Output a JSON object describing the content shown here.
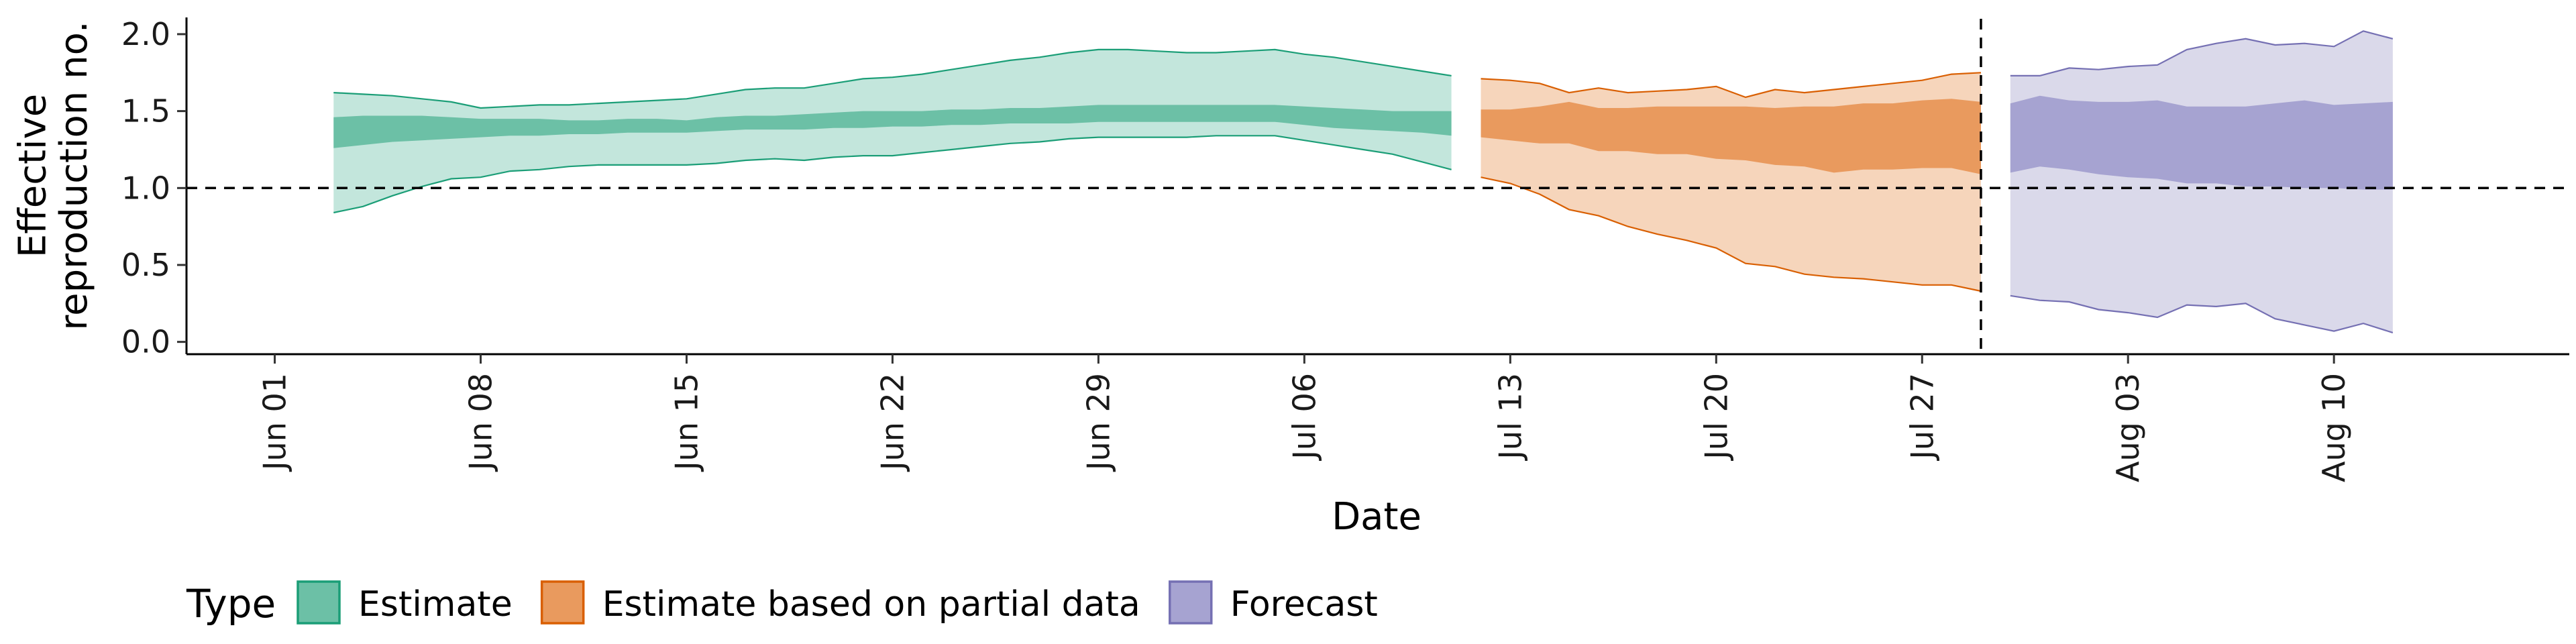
{
  "chart_data": {
    "type": "area",
    "title": "",
    "xlabel": "Date",
    "ylabel": "Effective\nreproduction no.",
    "x_tick_labels": [
      "Jun 01",
      "Jun 08",
      "Jun 15",
      "Jun 22",
      "Jun 29",
      "Jul 06",
      "Jul 13",
      "Jul 20",
      "Jul 27",
      "Aug 03",
      "Aug 10"
    ],
    "x_tick_dates": [
      "2020-06-01",
      "2020-06-08",
      "2020-06-15",
      "2020-06-22",
      "2020-06-29",
      "2020-07-06",
      "2020-07-13",
      "2020-07-20",
      "2020-07-27",
      "2020-08-03",
      "2020-08-10"
    ],
    "x_range": [
      "2020-05-29",
      "2020-08-18"
    ],
    "y_ticks": [
      "0.0",
      "0.5",
      "1.0",
      "1.5",
      "2.0"
    ],
    "ylim": [
      -0.08,
      2.1
    ],
    "reference_lines": {
      "horizontal_y": 1.0,
      "vertical_date": "2020-07-29"
    },
    "grid": false,
    "legend": {
      "title": "Type",
      "position": "bottom",
      "entries": [
        {
          "label": "Estimate",
          "fill": "#6cc0a6",
          "stroke": "#1b9e77"
        },
        {
          "label": "Estimate based on partial data",
          "fill": "#e99a5e",
          "stroke": "#d95f02"
        },
        {
          "label": "Forecast",
          "fill": "#a6a3d1",
          "stroke": "#7570b3"
        }
      ]
    },
    "series": [
      {
        "name": "Estimate",
        "outer_color": "#c3e6dc",
        "inner_color": "#6cc0a6",
        "stroke": "#1b9e77",
        "points": [
          {
            "date": "2020-06-03",
            "lower90": 0.84,
            "lower50": 1.26,
            "upper50": 1.46,
            "upper90": 1.62
          },
          {
            "date": "2020-06-04",
            "lower90": 0.88,
            "lower50": 1.28,
            "upper50": 1.47,
            "upper90": 1.61
          },
          {
            "date": "2020-06-05",
            "lower90": 0.95,
            "lower50": 1.3,
            "upper50": 1.47,
            "upper90": 1.6
          },
          {
            "date": "2020-06-06",
            "lower90": 1.01,
            "lower50": 1.31,
            "upper50": 1.47,
            "upper90": 1.58
          },
          {
            "date": "2020-06-07",
            "lower90": 1.06,
            "lower50": 1.32,
            "upper50": 1.46,
            "upper90": 1.56
          },
          {
            "date": "2020-06-08",
            "lower90": 1.07,
            "lower50": 1.33,
            "upper50": 1.45,
            "upper90": 1.52
          },
          {
            "date": "2020-06-09",
            "lower90": 1.11,
            "lower50": 1.34,
            "upper50": 1.45,
            "upper90": 1.53
          },
          {
            "date": "2020-06-10",
            "lower90": 1.12,
            "lower50": 1.34,
            "upper50": 1.45,
            "upper90": 1.54
          },
          {
            "date": "2020-06-11",
            "lower90": 1.14,
            "lower50": 1.35,
            "upper50": 1.44,
            "upper90": 1.54
          },
          {
            "date": "2020-06-12",
            "lower90": 1.15,
            "lower50": 1.35,
            "upper50": 1.44,
            "upper90": 1.55
          },
          {
            "date": "2020-06-13",
            "lower90": 1.15,
            "lower50": 1.36,
            "upper50": 1.45,
            "upper90": 1.56
          },
          {
            "date": "2020-06-14",
            "lower90": 1.15,
            "lower50": 1.36,
            "upper50": 1.45,
            "upper90": 1.57
          },
          {
            "date": "2020-06-15",
            "lower90": 1.15,
            "lower50": 1.36,
            "upper50": 1.44,
            "upper90": 1.58
          },
          {
            "date": "2020-06-16",
            "lower90": 1.16,
            "lower50": 1.37,
            "upper50": 1.46,
            "upper90": 1.61
          },
          {
            "date": "2020-06-17",
            "lower90": 1.18,
            "lower50": 1.38,
            "upper50": 1.47,
            "upper90": 1.64
          },
          {
            "date": "2020-06-18",
            "lower90": 1.19,
            "lower50": 1.38,
            "upper50": 1.47,
            "upper90": 1.65
          },
          {
            "date": "2020-06-19",
            "lower90": 1.18,
            "lower50": 1.38,
            "upper50": 1.48,
            "upper90": 1.65
          },
          {
            "date": "2020-06-20",
            "lower90": 1.2,
            "lower50": 1.39,
            "upper50": 1.49,
            "upper90": 1.68
          },
          {
            "date": "2020-06-21",
            "lower90": 1.21,
            "lower50": 1.39,
            "upper50": 1.5,
            "upper90": 1.71
          },
          {
            "date": "2020-06-22",
            "lower90": 1.21,
            "lower50": 1.4,
            "upper50": 1.5,
            "upper90": 1.72
          },
          {
            "date": "2020-06-23",
            "lower90": 1.23,
            "lower50": 1.4,
            "upper50": 1.5,
            "upper90": 1.74
          },
          {
            "date": "2020-06-24",
            "lower90": 1.25,
            "lower50": 1.41,
            "upper50": 1.51,
            "upper90": 1.77
          },
          {
            "date": "2020-06-25",
            "lower90": 1.27,
            "lower50": 1.41,
            "upper50": 1.51,
            "upper90": 1.8
          },
          {
            "date": "2020-06-26",
            "lower90": 1.29,
            "lower50": 1.42,
            "upper50": 1.52,
            "upper90": 1.83
          },
          {
            "date": "2020-06-27",
            "lower90": 1.3,
            "lower50": 1.42,
            "upper50": 1.52,
            "upper90": 1.85
          },
          {
            "date": "2020-06-28",
            "lower90": 1.32,
            "lower50": 1.42,
            "upper50": 1.53,
            "upper90": 1.88
          },
          {
            "date": "2020-06-29",
            "lower90": 1.33,
            "lower50": 1.43,
            "upper50": 1.54,
            "upper90": 1.9
          },
          {
            "date": "2020-06-30",
            "lower90": 1.33,
            "lower50": 1.43,
            "upper50": 1.54,
            "upper90": 1.9
          },
          {
            "date": "2020-07-01",
            "lower90": 1.33,
            "lower50": 1.43,
            "upper50": 1.54,
            "upper90": 1.89
          },
          {
            "date": "2020-07-02",
            "lower90": 1.33,
            "lower50": 1.43,
            "upper50": 1.54,
            "upper90": 1.88
          },
          {
            "date": "2020-07-03",
            "lower90": 1.34,
            "lower50": 1.43,
            "upper50": 1.54,
            "upper90": 1.88
          },
          {
            "date": "2020-07-04",
            "lower90": 1.34,
            "lower50": 1.43,
            "upper50": 1.54,
            "upper90": 1.89
          },
          {
            "date": "2020-07-05",
            "lower90": 1.34,
            "lower50": 1.43,
            "upper50": 1.54,
            "upper90": 1.9
          },
          {
            "date": "2020-07-06",
            "lower90": 1.31,
            "lower50": 1.41,
            "upper50": 1.53,
            "upper90": 1.87
          },
          {
            "date": "2020-07-07",
            "lower90": 1.28,
            "lower50": 1.39,
            "upper50": 1.52,
            "upper90": 1.85
          },
          {
            "date": "2020-07-08",
            "lower90": 1.25,
            "lower50": 1.38,
            "upper50": 1.51,
            "upper90": 1.82
          },
          {
            "date": "2020-07-09",
            "lower90": 1.22,
            "lower50": 1.37,
            "upper50": 1.5,
            "upper90": 1.79
          },
          {
            "date": "2020-07-10",
            "lower90": 1.17,
            "lower50": 1.36,
            "upper50": 1.5,
            "upper90": 1.76
          },
          {
            "date": "2020-07-11",
            "lower90": 1.12,
            "lower50": 1.34,
            "upper50": 1.5,
            "upper90": 1.73
          }
        ]
      },
      {
        "name": "Estimate based on partial data",
        "outer_color": "#f6d5bb",
        "inner_color": "#e99a5e",
        "stroke": "#d95f02",
        "points": [
          {
            "date": "2020-07-12",
            "lower90": 1.07,
            "lower50": 1.33,
            "upper50": 1.51,
            "upper90": 1.71
          },
          {
            "date": "2020-07-13",
            "lower90": 1.03,
            "lower50": 1.31,
            "upper50": 1.51,
            "upper90": 1.7
          },
          {
            "date": "2020-07-14",
            "lower90": 0.96,
            "lower50": 1.29,
            "upper50": 1.53,
            "upper90": 1.68
          },
          {
            "date": "2020-07-15",
            "lower90": 0.86,
            "lower50": 1.29,
            "upper50": 1.56,
            "upper90": 1.62
          },
          {
            "date": "2020-07-16",
            "lower90": 0.82,
            "lower50": 1.24,
            "upper50": 1.52,
            "upper90": 1.65
          },
          {
            "date": "2020-07-17",
            "lower90": 0.75,
            "lower50": 1.24,
            "upper50": 1.52,
            "upper90": 1.62
          },
          {
            "date": "2020-07-18",
            "lower90": 0.7,
            "lower50": 1.22,
            "upper50": 1.53,
            "upper90": 1.63
          },
          {
            "date": "2020-07-19",
            "lower90": 0.66,
            "lower50": 1.22,
            "upper50": 1.53,
            "upper90": 1.64
          },
          {
            "date": "2020-07-20",
            "lower90": 0.61,
            "lower50": 1.19,
            "upper50": 1.53,
            "upper90": 1.66
          },
          {
            "date": "2020-07-21",
            "lower90": 0.51,
            "lower50": 1.18,
            "upper50": 1.53,
            "upper90": 1.59
          },
          {
            "date": "2020-07-22",
            "lower90": 0.49,
            "lower50": 1.15,
            "upper50": 1.52,
            "upper90": 1.64
          },
          {
            "date": "2020-07-23",
            "lower90": 0.44,
            "lower50": 1.14,
            "upper50": 1.53,
            "upper90": 1.62
          },
          {
            "date": "2020-07-24",
            "lower90": 0.42,
            "lower50": 1.1,
            "upper50": 1.53,
            "upper90": 1.64
          },
          {
            "date": "2020-07-25",
            "lower90": 0.41,
            "lower50": 1.12,
            "upper50": 1.55,
            "upper90": 1.66
          },
          {
            "date": "2020-07-26",
            "lower90": 0.39,
            "lower50": 1.12,
            "upper50": 1.55,
            "upper90": 1.68
          },
          {
            "date": "2020-07-27",
            "lower90": 0.37,
            "lower50": 1.13,
            "upper50": 1.57,
            "upper90": 1.7
          },
          {
            "date": "2020-07-28",
            "lower90": 0.37,
            "lower50": 1.13,
            "upper50": 1.58,
            "upper90": 1.74
          },
          {
            "date": "2020-07-29",
            "lower90": 0.33,
            "lower50": 1.09,
            "upper50": 1.56,
            "upper90": 1.75
          }
        ]
      },
      {
        "name": "Forecast",
        "outer_color": "#dad9ea",
        "inner_color": "#a6a3d1",
        "stroke": "#7570b3",
        "points": [
          {
            "date": "2020-07-30",
            "lower90": 0.3,
            "lower50": 1.1,
            "upper50": 1.55,
            "upper90": 1.73
          },
          {
            "date": "2020-07-31",
            "lower90": 0.27,
            "lower50": 1.14,
            "upper50": 1.6,
            "upper90": 1.73
          },
          {
            "date": "2020-08-01",
            "lower90": 0.26,
            "lower50": 1.12,
            "upper50": 1.57,
            "upper90": 1.78
          },
          {
            "date": "2020-08-02",
            "lower90": 0.21,
            "lower50": 1.09,
            "upper50": 1.56,
            "upper90": 1.77
          },
          {
            "date": "2020-08-03",
            "lower90": 0.19,
            "lower50": 1.07,
            "upper50": 1.56,
            "upper90": 1.79
          },
          {
            "date": "2020-08-04",
            "lower90": 0.16,
            "lower50": 1.06,
            "upper50": 1.57,
            "upper90": 1.8
          },
          {
            "date": "2020-08-05",
            "lower90": 0.24,
            "lower50": 1.03,
            "upper50": 1.53,
            "upper90": 1.9
          },
          {
            "date": "2020-08-06",
            "lower90": 0.23,
            "lower50": 1.03,
            "upper50": 1.53,
            "upper90": 1.94
          },
          {
            "date": "2020-08-07",
            "lower90": 0.25,
            "lower50": 1.01,
            "upper50": 1.53,
            "upper90": 1.97
          },
          {
            "date": "2020-08-08",
            "lower90": 0.15,
            "lower50": 1.01,
            "upper50": 1.55,
            "upper90": 1.93
          },
          {
            "date": "2020-08-09",
            "lower90": 0.11,
            "lower50": 1.0,
            "upper50": 1.57,
            "upper90": 1.94
          },
          {
            "date": "2020-08-10",
            "lower90": 0.07,
            "lower50": 1.0,
            "upper50": 1.54,
            "upper90": 1.92
          },
          {
            "date": "2020-08-11",
            "lower90": 0.12,
            "lower50": 0.99,
            "upper50": 1.55,
            "upper90": 2.02
          },
          {
            "date": "2020-08-12",
            "lower90": 0.06,
            "lower50": 0.99,
            "upper50": 1.56,
            "upper90": 1.97
          }
        ]
      }
    ]
  }
}
